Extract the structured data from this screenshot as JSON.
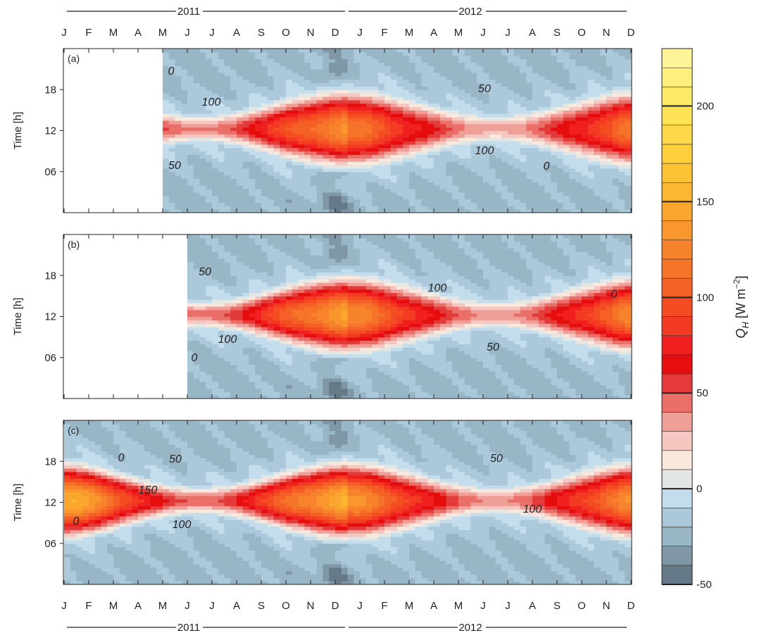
{
  "chart_data": {
    "type": "heatmap",
    "x_months": [
      "J",
      "F",
      "M",
      "A",
      "M",
      "J",
      "J",
      "A",
      "S",
      "O",
      "N",
      "D",
      "J",
      "F",
      "M",
      "A",
      "M",
      "J",
      "J",
      "A",
      "S",
      "O",
      "N",
      "D"
    ],
    "years": [
      "2011",
      "2012"
    ],
    "ylabel": "Time [h]",
    "yticks": [
      "06",
      "12",
      "18"
    ],
    "colorbar": {
      "label_main": "Q",
      "label_sub": "H",
      "label_unit": " [W m",
      "label_exp": "−2",
      "label_close": "]",
      "ticks": [
        "-50",
        "0",
        "50",
        "100",
        "150",
        "200"
      ],
      "min": -50,
      "max": 230,
      "levels": [
        -50,
        -40,
        -30,
        -20,
        -10,
        0,
        10,
        20,
        30,
        40,
        50,
        60,
        70,
        80,
        90,
        100,
        110,
        120,
        130,
        140,
        150,
        160,
        170,
        180,
        190,
        200,
        210,
        220,
        230
      ],
      "colors": [
        "#657a86",
        "#7f97a6",
        "#99b6c7",
        "#acc9db",
        "#c4dded",
        "#e2e6e4",
        "#fae8dc",
        "#f5c7c0",
        "#f09e98",
        "#ea6f69",
        "#e33a3a",
        "#e50d0d",
        "#f02020",
        "#f33a22",
        "#f44d22",
        "#f46026",
        "#f6732a",
        "#f7842c",
        "#f9962d",
        "#fba72f",
        "#fcb632",
        "#fec335",
        "#ffce3d",
        "#ffd848",
        "#ffe256",
        "#ffea68",
        "#fff07e",
        "#fff498"
      ]
    },
    "panels": [
      {
        "id": "(a)",
        "data_start_month": 4,
        "contour_labels": [
          "0",
          "100",
          "50",
          "50",
          "100",
          "0"
        ],
        "peak_values": [
          130,
          110
        ]
      },
      {
        "id": "(b)",
        "data_start_month": 5,
        "contour_labels": [
          "50",
          "100",
          "100",
          "50",
          "0",
          "0"
        ],
        "peak_values": [
          140,
          120
        ]
      },
      {
        "id": "(c)",
        "data_start_month": 0,
        "contour_labels": [
          "0",
          "50",
          "150",
          "100",
          "0",
          "50",
          "100"
        ],
        "peak_values": [
          150,
          125
        ]
      }
    ]
  }
}
